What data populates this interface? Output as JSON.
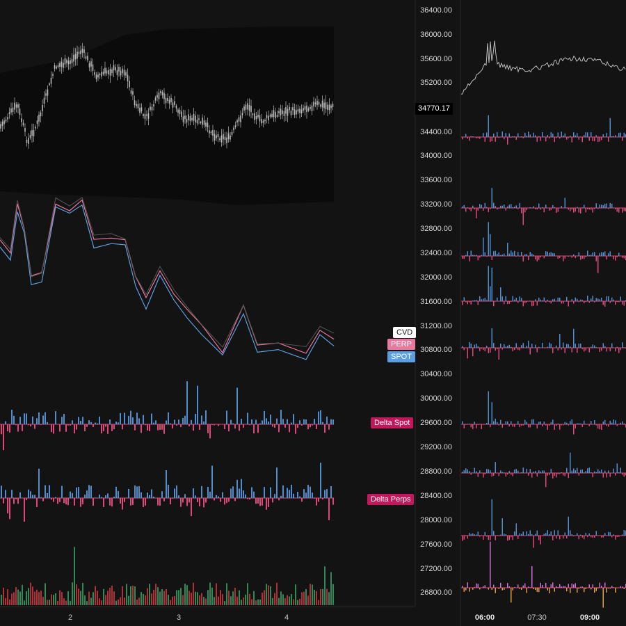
{
  "right_axis": {
    "labels": [
      "36400.00",
      "36000.00",
      "35600.00",
      "35200.00",
      "34400.00",
      "34000.00",
      "33600.00",
      "33200.00",
      "32800.00",
      "32400.00",
      "32000.00",
      "31600.00",
      "31200.00",
      "30800.00",
      "30400.00",
      "30000.00",
      "29600.00",
      "29200.00",
      "28800.00",
      "28400.00",
      "28000.00",
      "27600.00",
      "27200.00",
      "26800.00"
    ],
    "current_price": "34770.17"
  },
  "left_x_axis": [
    "2",
    "3",
    "4"
  ],
  "right_x_axis": [
    "06:00",
    "07:30",
    "09:00"
  ],
  "legend": {
    "cvd": "CVD",
    "perp": "PERP",
    "spot": "SPOT",
    "delta_spot": "Delta Spot",
    "delta_perps": "Delta Perps"
  },
  "colors": {
    "background": "#131313",
    "candle": "#bdbdbd",
    "perp": "#e8789d",
    "spot": "#5b9fe0",
    "delta_up": "#4f8fd0",
    "delta_down": "#e0487a",
    "volume_up": "#2e8b57",
    "volume_down": "#b0303a",
    "label_red": "#c2185b"
  }
}
